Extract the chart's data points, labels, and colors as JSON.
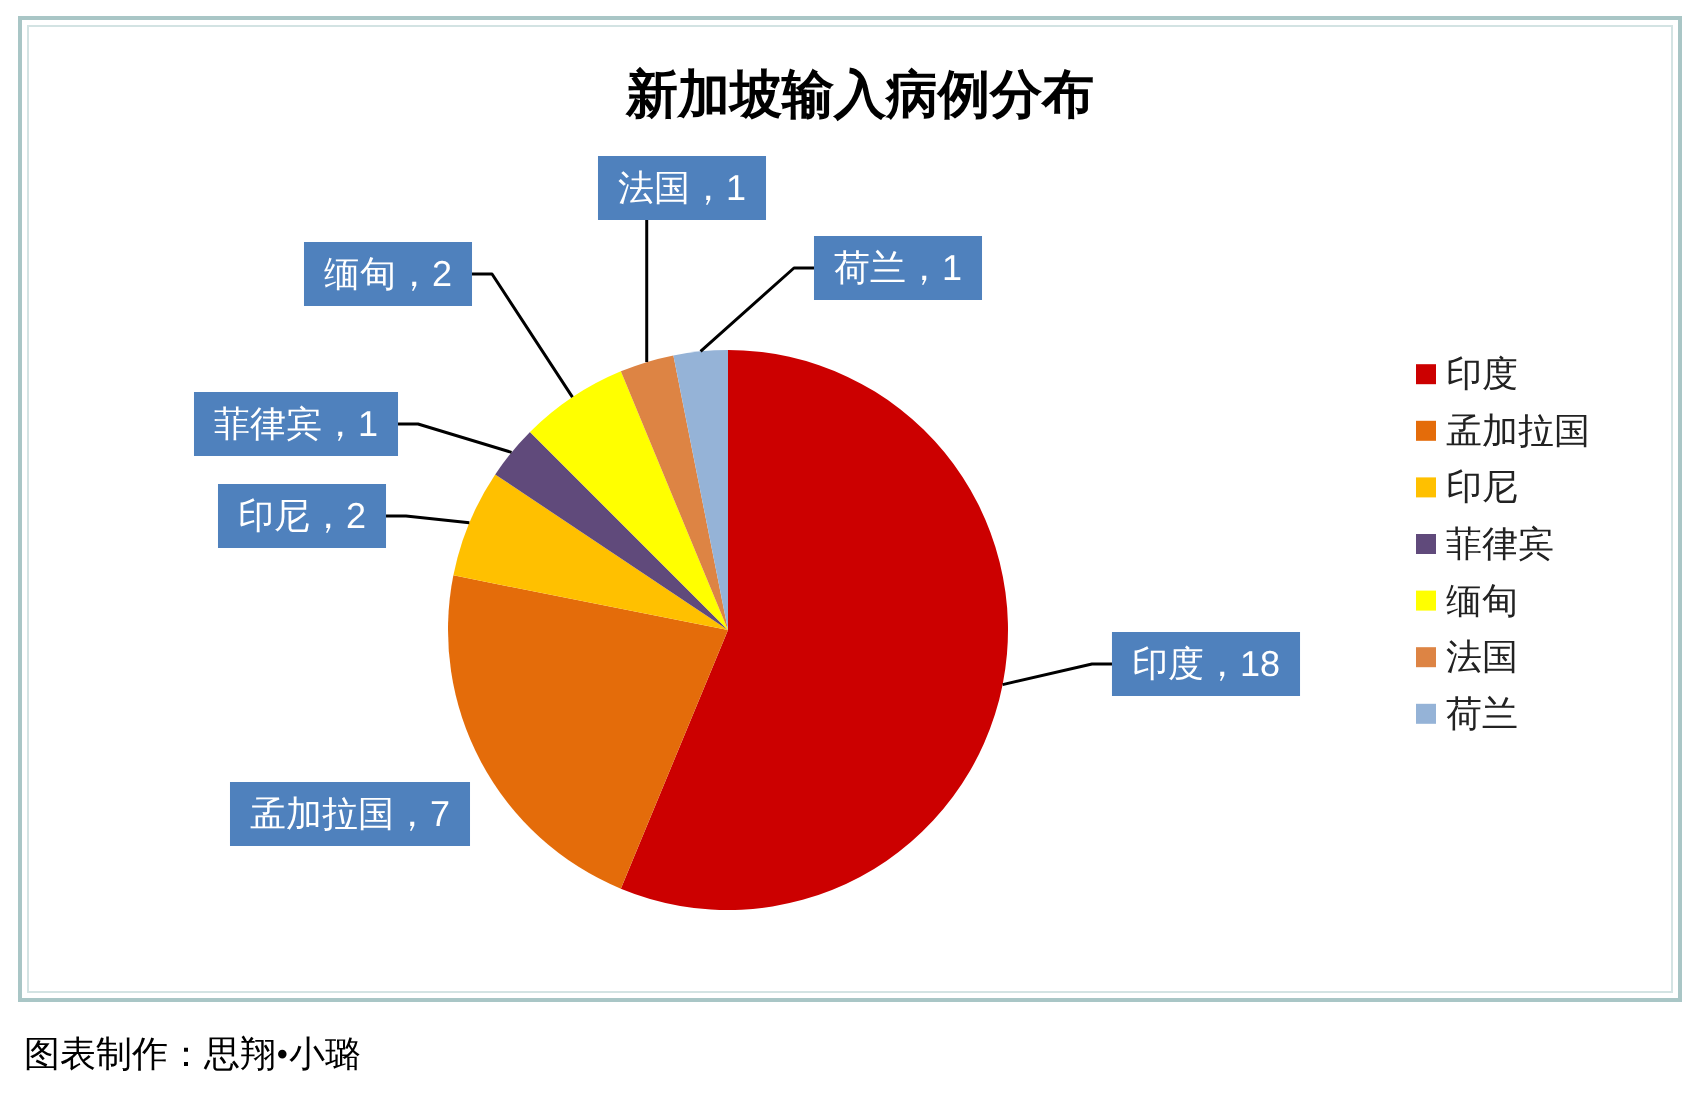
{
  "chart_data": {
    "type": "pie",
    "title": "新加坡输入病例分布",
    "categories": [
      "印度",
      "孟加拉国",
      "印尼",
      "菲律宾",
      "缅甸",
      "法国",
      "荷兰"
    ],
    "values": [
      18,
      7,
      2,
      1,
      2,
      1,
      1
    ],
    "colors": [
      "#cc0000",
      "#e46c0a",
      "#ffc000",
      "#604a7b",
      "#ffff00",
      "#dd8444",
      "#95b3d7"
    ],
    "value_labels": [
      "印度，18",
      "孟加拉国，7",
      "印尼，2",
      "菲律宾，1",
      "缅甸，2",
      "法国，1",
      "荷兰，1"
    ],
    "legend": "right",
    "annotations": [
      "图表制作：思翔•小璐"
    ]
  }
}
